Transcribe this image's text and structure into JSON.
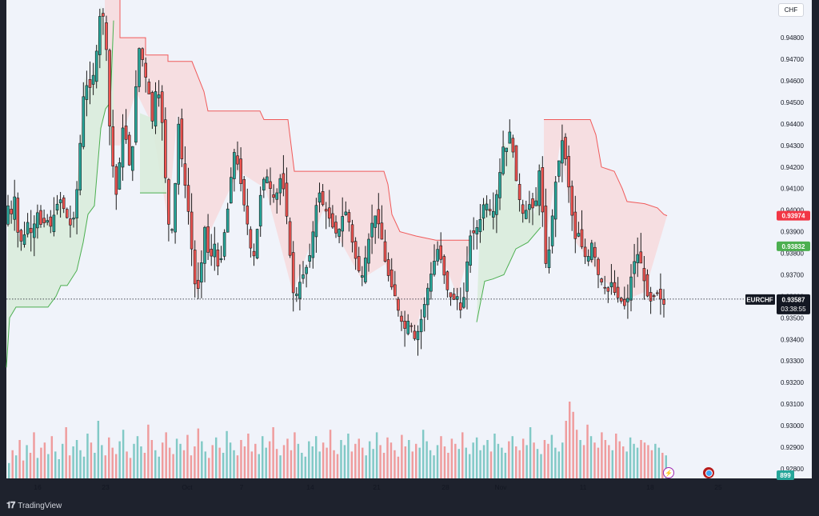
{
  "currency": "CHF",
  "symbol": "EURCHF",
  "last_price": "0.93587",
  "countdown": "03:38:55",
  "upper_band_price": "0.93974",
  "lower_band_price": "0.93832",
  "volume_value": "899",
  "brand": "TradingView",
  "colors": {
    "bull": "#26a69a",
    "bear": "#ef5350",
    "candle_body": "#1b1b1b",
    "upper_fill": "#f7d9dc",
    "lower_fill": "#d9ecdc",
    "upper_line": "#f05a5a",
    "lower_line": "#4caf50",
    "badge_red": "#f23645",
    "badge_green": "#4caf50",
    "badge_black": "#131722",
    "badge_teal": "#26a69a"
  },
  "chart_data": {
    "type": "candlestick",
    "symbol": "EURCHF",
    "x_tick_labels": [
      "16",
      "23",
      "Oct",
      "7",
      "14",
      "21",
      "28",
      "Nov",
      "11",
      "18",
      "25"
    ],
    "y_tick_labels": [
      "0.94800",
      "0.94700",
      "0.94600",
      "0.94500",
      "0.94400",
      "0.94300",
      "0.94200",
      "0.94100",
      "0.94000",
      "0.93900",
      "0.93800",
      "0.93700",
      "0.93600",
      "0.93500",
      "0.93400",
      "0.93300",
      "0.93200",
      "0.93100",
      "0.93000",
      "0.92900",
      "0.92800"
    ],
    "y_tick_values": [
      0.948,
      0.947,
      0.946,
      0.945,
      0.944,
      0.943,
      0.942,
      0.941,
      0.94,
      0.939,
      0.938,
      0.937,
      0.936,
      0.935,
      0.934,
      0.933,
      0.932,
      0.931,
      0.93,
      0.929,
      0.928
    ],
    "ylim": [
      0.92755,
      0.94975
    ],
    "last": 0.93587,
    "price_path": [
      [
        0,
        0.937
      ],
      [
        6,
        0.9385
      ],
      [
        10,
        0.9402
      ],
      [
        14,
        0.9398
      ],
      [
        18,
        0.9407
      ],
      [
        22,
        0.939
      ],
      [
        28,
        0.9384
      ],
      [
        34,
        0.9395
      ],
      [
        40,
        0.9388
      ],
      [
        46,
        0.94
      ],
      [
        52,
        0.9392
      ],
      [
        58,
        0.9396
      ],
      [
        64,
        0.9392
      ],
      [
        70,
        0.9402
      ],
      [
        76,
        0.9405
      ],
      [
        82,
        0.9398
      ],
      [
        88,
        0.9393
      ],
      [
        94,
        0.9398
      ],
      [
        98,
        0.942
      ],
      [
        102,
        0.944
      ],
      [
        106,
        0.9462
      ],
      [
        110,
        0.9455
      ],
      [
        114,
        0.9458
      ],
      [
        118,
        0.9465
      ],
      [
        122,
        0.9478
      ],
      [
        126,
        0.9495
      ],
      [
        130,
        0.9488
      ],
      [
        134,
        0.947
      ],
      [
        138,
        0.943
      ],
      [
        142,
        0.9418
      ],
      [
        146,
        0.9405
      ],
      [
        150,
        0.9425
      ],
      [
        154,
        0.944
      ],
      [
        158,
        0.9432
      ],
      [
        162,
        0.942
      ],
      [
        166,
        0.943
      ],
      [
        170,
        0.9458
      ],
      [
        174,
        0.9475
      ],
      [
        178,
        0.947
      ],
      [
        182,
        0.9462
      ],
      [
        186,
        0.9455
      ],
      [
        190,
        0.944
      ],
      [
        196,
        0.946
      ],
      [
        202,
        0.9445
      ],
      [
        206,
        0.942
      ],
      [
        210,
        0.9395
      ],
      [
        214,
        0.9388
      ],
      [
        218,
        0.94
      ],
      [
        222,
        0.9445
      ],
      [
        226,
        0.9428
      ],
      [
        230,
        0.9415
      ],
      [
        234,
        0.9405
      ],
      [
        238,
        0.939
      ],
      [
        242,
        0.937
      ],
      [
        246,
        0.936
      ],
      [
        250,
        0.9368
      ],
      [
        256,
        0.9392
      ],
      [
        262,
        0.9375
      ],
      [
        268,
        0.9385
      ],
      [
        274,
        0.937
      ],
      [
        280,
        0.9388
      ],
      [
        286,
        0.9404
      ],
      [
        292,
        0.9428
      ],
      [
        298,
        0.942
      ],
      [
        304,
        0.9405
      ],
      [
        310,
        0.9392
      ],
      [
        316,
        0.9375
      ],
      [
        320,
        0.9385
      ],
      [
        326,
        0.9408
      ],
      [
        332,
        0.9418
      ],
      [
        338,
        0.941
      ],
      [
        344,
        0.9404
      ],
      [
        350,
        0.9415
      ],
      [
        356,
        0.9408
      ],
      [
        362,
        0.9382
      ],
      [
        366,
        0.9362
      ],
      [
        370,
        0.936
      ],
      [
        376,
        0.9368
      ],
      [
        382,
        0.9372
      ],
      [
        388,
        0.938
      ],
      [
        394,
        0.9398
      ],
      [
        398,
        0.941
      ],
      [
        404,
        0.9402
      ],
      [
        410,
        0.9398
      ],
      [
        416,
        0.9392
      ],
      [
        422,
        0.9388
      ],
      [
        428,
        0.9397
      ],
      [
        434,
        0.94
      ],
      [
        440,
        0.9386
      ],
      [
        446,
        0.9375
      ],
      [
        452,
        0.9368
      ],
      [
        458,
        0.938
      ],
      [
        464,
        0.9393
      ],
      [
        470,
        0.9398
      ],
      [
        476,
        0.939
      ],
      [
        482,
        0.9375
      ],
      [
        488,
        0.9366
      ],
      [
        494,
        0.936
      ],
      [
        500,
        0.935
      ],
      [
        506,
        0.9345
      ],
      [
        512,
        0.935
      ],
      [
        518,
        0.934
      ],
      [
        524,
        0.9345
      ],
      [
        530,
        0.9355
      ],
      [
        536,
        0.9366
      ],
      [
        542,
        0.9375
      ],
      [
        548,
        0.9383
      ],
      [
        554,
        0.9372
      ],
      [
        560,
        0.9362
      ],
      [
        566,
        0.9358
      ],
      [
        572,
        0.936
      ],
      [
        578,
        0.935
      ],
      [
        582,
        0.937
      ],
      [
        588,
        0.9388
      ],
      [
        594,
        0.939
      ],
      [
        600,
        0.9395
      ],
      [
        606,
        0.9405
      ],
      [
        612,
        0.94
      ],
      [
        616,
        0.9398
      ],
      [
        620,
        0.9405
      ],
      [
        626,
        0.942
      ],
      [
        630,
        0.9432
      ],
      [
        634,
        0.9428
      ],
      [
        638,
        0.9438
      ],
      [
        642,
        0.9425
      ],
      [
        646,
        0.9412
      ],
      [
        650,
        0.9404
      ],
      [
        654,
        0.9398
      ],
      [
        658,
        0.94
      ],
      [
        664,
        0.9404
      ],
      [
        668,
        0.9398
      ],
      [
        672,
        0.941
      ],
      [
        676,
        0.9425
      ],
      [
        680,
        0.938
      ],
      [
        684,
        0.9372
      ],
      [
        690,
        0.9395
      ],
      [
        696,
        0.9418
      ],
      [
        700,
        0.9425
      ],
      [
        704,
        0.9435
      ],
      [
        708,
        0.942
      ],
      [
        712,
        0.9408
      ],
      [
        716,
        0.9395
      ],
      [
        720,
        0.9385
      ],
      [
        724,
        0.939
      ],
      [
        728,
        0.9382
      ],
      [
        734,
        0.9376
      ],
      [
        740,
        0.9385
      ],
      [
        744,
        0.9378
      ],
      [
        748,
        0.937
      ],
      [
        754,
        0.9365
      ],
      [
        760,
        0.9362
      ],
      [
        766,
        0.9368
      ],
      [
        770,
        0.9358
      ],
      [
        774,
        0.936
      ],
      [
        780,
        0.9355
      ],
      [
        786,
        0.936
      ],
      [
        790,
        0.9372
      ],
      [
        796,
        0.938
      ],
      [
        800,
        0.9378
      ],
      [
        804,
        0.937
      ],
      [
        808,
        0.9362
      ],
      [
        812,
        0.9357
      ],
      [
        818,
        0.936
      ],
      [
        824,
        0.9362
      ],
      [
        828,
        0.9355
      ],
      [
        834,
        0.93587
      ]
    ],
    "upper_band": [
      [
        131,
        0.9498
      ],
      [
        150,
        0.9498
      ],
      [
        150,
        0.948
      ],
      [
        182,
        0.948
      ],
      [
        182,
        0.9472
      ],
      [
        210,
        0.9472
      ],
      [
        210,
        0.9469
      ],
      [
        240,
        0.9469
      ],
      [
        255,
        0.9455
      ],
      [
        260,
        0.9446
      ],
      [
        325,
        0.9446
      ],
      [
        330,
        0.9442
      ],
      [
        360,
        0.9442
      ],
      [
        368,
        0.9418
      ],
      [
        480,
        0.9418
      ],
      [
        485,
        0.9412
      ],
      [
        490,
        0.9398
      ],
      [
        500,
        0.939
      ],
      [
        520,
        0.9388
      ],
      [
        545,
        0.9386
      ],
      [
        590,
        0.9386
      ],
      [
        590,
        0.9386
      ],
      [
        680,
        0.9442
      ],
      [
        738,
        0.9442
      ],
      [
        745,
        0.9435
      ],
      [
        752,
        0.942
      ],
      [
        768,
        0.9418
      ],
      [
        778,
        0.941
      ],
      [
        784,
        0.9404
      ],
      [
        806,
        0.9403
      ],
      [
        822,
        0.9401
      ],
      [
        830,
        0.9398
      ],
      [
        834,
        0.93974
      ]
    ],
    "upper_close_path": [
      [
        834,
        0.93587
      ],
      [
        806,
        0.9362
      ],
      [
        780,
        0.9358
      ],
      [
        754,
        0.9368
      ],
      [
        720,
        0.9385
      ],
      [
        700,
        0.943
      ],
      [
        680,
        0.938
      ],
      [
        680,
        0.9442
      ]
    ],
    "upper_close_path_2": [
      [
        590,
        0.9386
      ],
      [
        572,
        0.936
      ],
      [
        548,
        0.9383
      ],
      [
        518,
        0.9342
      ],
      [
        500,
        0.935
      ],
      [
        482,
        0.9375
      ],
      [
        452,
        0.9368
      ],
      [
        404,
        0.94
      ],
      [
        366,
        0.9362
      ],
      [
        332,
        0.941
      ],
      [
        298,
        0.9418
      ],
      [
        256,
        0.9385
      ],
      [
        246,
        0.936
      ],
      [
        222,
        0.9445
      ],
      [
        210,
        0.9395
      ],
      [
        190,
        0.944
      ],
      [
        170,
        0.9455
      ],
      [
        150,
        0.943
      ],
      [
        138,
        0.943
      ],
      [
        131,
        0.947
      ]
    ],
    "lower_band": [
      [
        8,
        0.9327
      ],
      [
        12,
        0.935
      ],
      [
        20,
        0.9355
      ],
      [
        24,
        0.9355
      ],
      [
        60,
        0.9355
      ],
      [
        70,
        0.936
      ],
      [
        76,
        0.9365
      ],
      [
        84,
        0.9365
      ],
      [
        96,
        0.9372
      ],
      [
        104,
        0.9385
      ],
      [
        110,
        0.9398
      ],
      [
        118,
        0.9402
      ],
      [
        126,
        0.9438
      ],
      [
        132,
        0.9447
      ],
      [
        138,
        0.945
      ],
      [
        142,
        0.9488
      ]
    ],
    "lower_band_2": [
      [
        175,
        0.9408
      ],
      [
        208,
        0.9408
      ]
    ],
    "lower_band_3": [
      [
        596,
        0.9348
      ],
      [
        606,
        0.9367
      ],
      [
        616,
        0.9368
      ],
      [
        630,
        0.937
      ],
      [
        645,
        0.9382
      ],
      [
        660,
        0.9385
      ],
      [
        676,
        0.9392
      ]
    ],
    "volume_heights": [
      12,
      22,
      18,
      30,
      14,
      26,
      20,
      36,
      16,
      24,
      28,
      19,
      33,
      21,
      15,
      27,
      40,
      18,
      25,
      30,
      22,
      17,
      35,
      28,
      20,
      45,
      26,
      18,
      32,
      24,
      19,
      29,
      38,
      21,
      16,
      27,
      33,
      25,
      20,
      42,
      30,
      22,
      17,
      28,
      36,
      24,
      19,
      31,
      27,
      22,
      34,
      18,
      25,
      39,
      29,
      21,
      16,
      26,
      32,
      24,
      20,
      37,
      28,
      22,
      18,
      30,
      25,
      35,
      21,
      27,
      19,
      33,
      24,
      29,
      40,
      23,
      18,
      26,
      31,
      22,
      36,
      27,
      20,
      17,
      29,
      25,
      33,
      21,
      28,
      24,
      38,
      22,
      19,
      30,
      26,
      35,
      21,
      27,
      31,
      24,
      18,
      29,
      23,
      36,
      26,
      20,
      32,
      28,
      22,
      17,
      34,
      25,
      30,
      21,
      27,
      24,
      38,
      29,
      22,
      18,
      26,
      33,
      25,
      20,
      31,
      27,
      23,
      36,
      24,
      19,
      28,
      32,
      22,
      26,
      30,
      21,
      35,
      27,
      24,
      20,
      29,
      33,
      25,
      22,
      31,
      26,
      40,
      28,
      23,
      19,
      30,
      27,
      34,
      24,
      21,
      28,
      45,
      60,
      52,
      38,
      30,
      26,
      42,
      33,
      28,
      24,
      36,
      30,
      26,
      22,
      35,
      29,
      25,
      21,
      32,
      27,
      24,
      30,
      28,
      26,
      22,
      27,
      24,
      20,
      18
    ]
  }
}
